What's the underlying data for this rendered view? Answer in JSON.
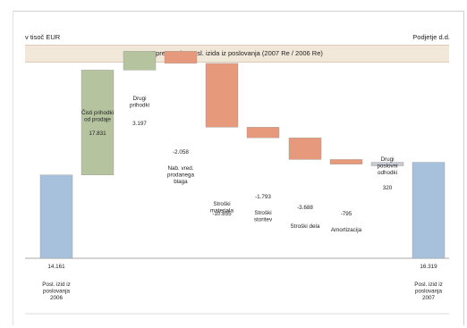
{
  "header": {
    "unit": "v tisoč EUR",
    "company": "Podjetje d.d."
  },
  "chart_data": {
    "type": "bar",
    "subtype": "waterfall",
    "title": "Sprememba posl. izida iz poslovanja (2007 Re / 2006 Re)",
    "xlabel": "",
    "ylabel": "",
    "grid": false,
    "legend": "none",
    "categories": [
      [
        "Posl. izid iz",
        "poslovanja",
        "2006"
      ],
      [
        "Čisti prihodki",
        "od prodaje"
      ],
      [
        "Drugi",
        "prihodki"
      ],
      [
        "Nab. vred.",
        "prodanega",
        "blaga"
      ],
      [
        "Stroški",
        "materiala"
      ],
      [
        "Stroški",
        "storitev"
      ],
      [
        "Stroški dela"
      ],
      [
        "Amortizacija"
      ],
      [
        "Drugi",
        "poslovni",
        "odhodki"
      ],
      [
        "Posl. izid iz",
        "poslovanja",
        "2007"
      ]
    ],
    "values": [
      14161,
      17831,
      3197,
      -2058,
      -10855,
      -1793,
      -3688,
      -795,
      320,
      16319
    ],
    "value_labels": [
      "14.161",
      "17.831",
      "3.197",
      "-2.058",
      "-10.855",
      "-1.793",
      "-3.688",
      "-795",
      "320",
      "16.319"
    ],
    "kinds": [
      "total",
      "delta",
      "delta",
      "delta",
      "delta",
      "delta",
      "delta",
      "delta",
      "delta",
      "total"
    ],
    "colors": {
      "total": "#a7c0dc",
      "increase": "#b5c39f",
      "decrease": "#e79a7b",
      "other": "#c6cbd1"
    },
    "ylim": [
      0,
      36000
    ]
  }
}
